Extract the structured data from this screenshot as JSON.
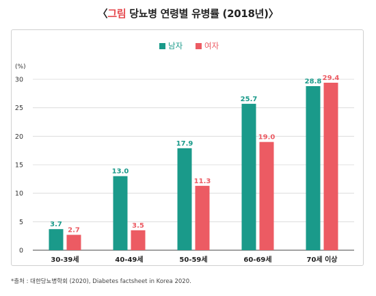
{
  "title": {
    "prefix": "〈",
    "accent": "그림",
    "text": " 당뇨병 연령별 유병률 (2018년)",
    "suffix": "〉"
  },
  "chart_data": {
    "type": "bar",
    "categories": [
      "30-39세",
      "40-49세",
      "50-59세",
      "60-69세",
      "70세 이상"
    ],
    "series": [
      {
        "name": "남자",
        "color": "#1a9a8a",
        "values": [
          3.7,
          13.0,
          17.9,
          25.7,
          28.8
        ],
        "labels": [
          "3.7",
          "13.0",
          "17.9",
          "25.7",
          "28.8"
        ]
      },
      {
        "name": "여자",
        "color": "#ec5b63",
        "values": [
          2.7,
          3.5,
          11.3,
          19.0,
          29.4
        ],
        "labels": [
          "2.7",
          "3.5",
          "11.3",
          "19.0",
          "29.4"
        ]
      }
    ],
    "yunit": "(%)",
    "ylim": [
      0,
      30
    ],
    "yticks": [
      0,
      5,
      10,
      15,
      20,
      25,
      30
    ],
    "grid": true,
    "legend": "top-center"
  },
  "source": "*출처 : 대한당뇨병학회 (2020), Diabetes factsheet in Korea 2020."
}
